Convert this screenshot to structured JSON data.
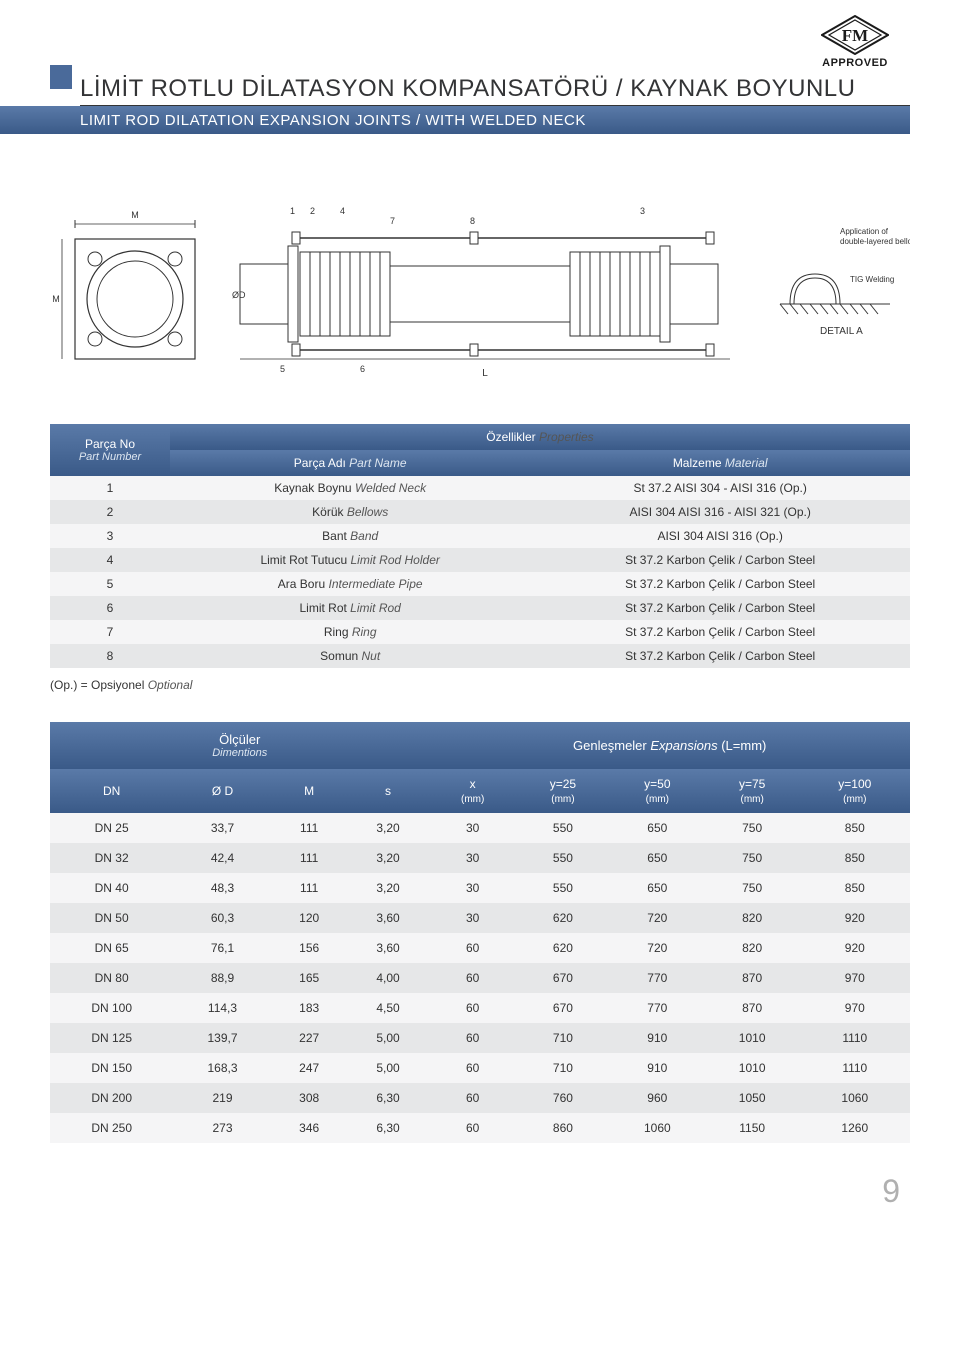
{
  "logo": {
    "text_top": "FM",
    "text_bottom": "APPROVED"
  },
  "title": {
    "main": "LİMİT ROTLU DİLATASYON KOMPANSATÖRÜ / KAYNAK BOYUNLU",
    "sub": "LIMIT ROD DILATATION  EXPANSION JOINTS / WITH WELDED NECK"
  },
  "parts_table": {
    "header": {
      "left_tr": "Parça No",
      "left_en": "Part Number",
      "center_tr": "Özellikler",
      "center_en": "Properties",
      "name_tr": "Parça Adı",
      "name_en": "Part Name",
      "mat_tr": "Malzeme",
      "mat_en": "Material"
    },
    "rows": [
      {
        "no": "1",
        "name_tr": "Kaynak Boynu",
        "name_en": "Welded Neck",
        "mat": "St 37.2 AISI 304 - AISI 316 (Op.)"
      },
      {
        "no": "2",
        "name_tr": "Körük",
        "name_en": "Bellows",
        "mat": "AISI 304 AISI 316 - AISI 321 (Op.)"
      },
      {
        "no": "3",
        "name_tr": "Bant",
        "name_en": "Band",
        "mat": "AISI 304 AISI 316 (Op.)"
      },
      {
        "no": "4",
        "name_tr": "Limit Rot Tutucu",
        "name_en": "Limit Rod Holder",
        "mat": "St 37.2 Karbon Çelik / Carbon Steel"
      },
      {
        "no": "5",
        "name_tr": "Ara Boru",
        "name_en": "Intermediate Pipe",
        "mat": "St 37.2 Karbon Çelik / Carbon Steel"
      },
      {
        "no": "6",
        "name_tr": "Limit Rot",
        "name_en": "Limit Rod",
        "mat": "St 37.2 Karbon Çelik / Carbon Steel"
      },
      {
        "no": "7",
        "name_tr": "Ring",
        "name_en": "Ring",
        "mat": "St 37.2 Karbon Çelik / Carbon Steel"
      },
      {
        "no": "8",
        "name_tr": "Somun",
        "name_en": "Nut",
        "mat": "St 37.2 Karbon Çelik / Carbon Steel"
      }
    ]
  },
  "note": {
    "tr": "(Op.) = Opsiyonel",
    "en": "Optional"
  },
  "dims_table": {
    "group_left_tr": "Ölçüler",
    "group_left_en": "Dimentions",
    "group_right_tr": "Genleşmeler",
    "group_right_en": "Expansions",
    "group_right_suffix": "(L=mm)",
    "cols": [
      "DN",
      "Ø D",
      "M",
      "s",
      "x\n(mm)",
      "y=25\n(mm)",
      "y=50\n(mm)",
      "y=75\n(mm)",
      "y=100\n(mm)"
    ],
    "rows": [
      [
        "DN 25",
        "33,7",
        "111",
        "3,20",
        "30",
        "550",
        "650",
        "750",
        "850"
      ],
      [
        "DN 32",
        "42,4",
        "111",
        "3,20",
        "30",
        "550",
        "650",
        "750",
        "850"
      ],
      [
        "DN 40",
        "48,3",
        "111",
        "3,20",
        "30",
        "550",
        "650",
        "750",
        "850"
      ],
      [
        "DN 50",
        "60,3",
        "120",
        "3,60",
        "30",
        "620",
        "720",
        "820",
        "920"
      ],
      [
        "DN 65",
        "76,1",
        "156",
        "3,60",
        "60",
        "620",
        "720",
        "820",
        "920"
      ],
      [
        "DN 80",
        "88,9",
        "165",
        "4,00",
        "60",
        "670",
        "770",
        "870",
        "970"
      ],
      [
        "DN 100",
        "114,3",
        "183",
        "4,50",
        "60",
        "670",
        "770",
        "870",
        "970"
      ],
      [
        "DN 125",
        "139,7",
        "227",
        "5,00",
        "60",
        "710",
        "910",
        "1010",
        "1110"
      ],
      [
        "DN 150",
        "168,3",
        "247",
        "5,00",
        "60",
        "710",
        "910",
        "1010",
        "1110"
      ],
      [
        "DN 200",
        "219",
        "308",
        "6,30",
        "60",
        "760",
        "960",
        "1050",
        "1060"
      ],
      [
        "DN 250",
        "273",
        "346",
        "6,30",
        "60",
        "860",
        "1060",
        "1150",
        "1260"
      ]
    ]
  },
  "page_number": "9",
  "colors": {
    "bar_grad_top": "#5a7aa8",
    "bar_grad_bottom": "#3a5a88",
    "row_odd": "#f5f5f6",
    "row_even": "#e6e7e8",
    "text": "#333436",
    "page_num": "#b0b0b0"
  }
}
